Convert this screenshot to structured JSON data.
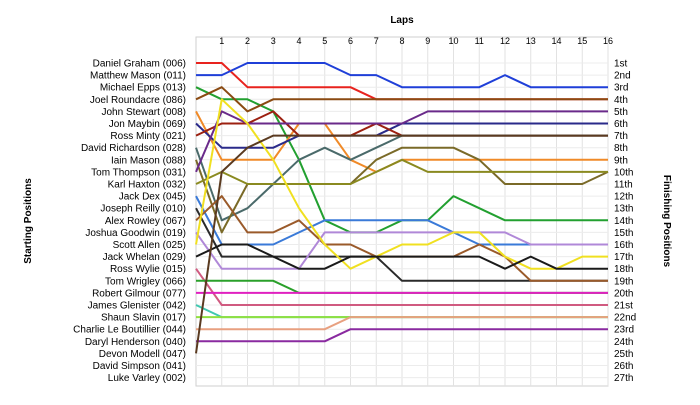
{
  "chart_data": {
    "type": "line",
    "title": "Laps",
    "xlabel": "Laps",
    "ylabel_left": "Starting Positions",
    "ylabel_right": "Finishing Positions",
    "laps": [
      1,
      2,
      3,
      4,
      5,
      6,
      7,
      8,
      9,
      10,
      11,
      12,
      13,
      14,
      15,
      16
    ],
    "x_range": [
      0,
      16
    ],
    "positions_range": [
      1,
      27
    ],
    "grid": true,
    "starting_grid": [
      "Daniel Graham (006)",
      "Matthew Mason (011)",
      "Michael Epps (013)",
      "Joel Roundacre (086)",
      "John Stewart (008)",
      "Jon Maybin (069)",
      "Ross Minty (021)",
      "David Richardson (028)",
      "Iain Mason (088)",
      "Tom Thompson (031)",
      "Karl Haxton (032)",
      "Jack Dex (045)",
      "Joseph Reilly (010)",
      "Alex Rowley (067)",
      "Joshua Goodwin (019)",
      "Scott Allen (025)",
      "Jack Whelan (029)",
      "Ross Wylie (015)",
      "Tom Wrigley (066)",
      "Robert Gilmour (077)",
      "James Glenister (042)",
      "Shaun Slavin (017)",
      "Charlie Le Boutillier (044)",
      "Daryl Henderson (040)",
      "Devon Modell (047)",
      "David Simpson (041)",
      "Luke Varley (002)"
    ],
    "finishing_labels": [
      "1st",
      "2nd",
      "3rd",
      "4th",
      "5th",
      "6th",
      "7th",
      "8th",
      "9th",
      "10th",
      "11th",
      "12th",
      "13th",
      "14th",
      "15th",
      "16th",
      "17th",
      "18th",
      "19th",
      "20th",
      "21st",
      "22nd",
      "23rd",
      "24th",
      "25th",
      "26th",
      "27th"
    ],
    "series": [
      {
        "color": "#e8231e",
        "positions": [
          1,
          1,
          3,
          3,
          3,
          3,
          3,
          4,
          4,
          4,
          4,
          4,
          4,
          4,
          4,
          4,
          4
        ]
      },
      {
        "color": "#1f3fd8",
        "positions": [
          2,
          2,
          1,
          1,
          1,
          1,
          2,
          2,
          3,
          3,
          3,
          3,
          2,
          3,
          3,
          3,
          3
        ]
      },
      {
        "color": "#22a030",
        "positions": [
          3,
          4,
          4,
          5,
          9,
          14,
          15,
          15,
          14,
          14,
          12,
          13,
          14,
          14,
          14,
          14,
          14
        ]
      },
      {
        "color": "#8a4a12",
        "positions": [
          4,
          3,
          5,
          4,
          4,
          4,
          4,
          4,
          4,
          4,
          4,
          4,
          4,
          4,
          4,
          4,
          4
        ]
      },
      {
        "color": "#f08a28",
        "positions": [
          5,
          9,
          9,
          9,
          6,
          6,
          9,
          10,
          9,
          9,
          9,
          9,
          9,
          9,
          9,
          9,
          9
        ]
      },
      {
        "color": "#2a2a8a",
        "positions": [
          6,
          8,
          8,
          8,
          7,
          7,
          7,
          7,
          6,
          6,
          6,
          6,
          6,
          6,
          6,
          6,
          6
        ]
      },
      {
        "color": "#9c2010",
        "positions": [
          7,
          6,
          6,
          5,
          7,
          7,
          7,
          6,
          7,
          7,
          7,
          7,
          7,
          7,
          7,
          7,
          7
        ]
      },
      {
        "color": "#4a6a6a",
        "positions": [
          8,
          14,
          13,
          11,
          9,
          8,
          9,
          8,
          7,
          7,
          7,
          7,
          7,
          7,
          7,
          7,
          7
        ]
      },
      {
        "color": "#7a6a28",
        "positions": [
          9,
          15,
          11,
          11,
          11,
          11,
          11,
          9,
          8,
          8,
          8,
          9,
          11,
          11,
          11,
          11,
          10
        ]
      },
      {
        "color": "#6a2a8a",
        "positions": [
          10,
          5,
          6,
          6,
          6,
          6,
          6,
          6,
          6,
          5,
          5,
          5,
          5,
          5,
          5,
          5,
          5
        ]
      },
      {
        "color": "#8a8a20",
        "positions": [
          11,
          10,
          11,
          11,
          11,
          11,
          11,
          10,
          9,
          10,
          10,
          10,
          10,
          10,
          10,
          10,
          10
        ]
      },
      {
        "color": "#2a2a2a",
        "positions": [
          13,
          17,
          17,
          17,
          17,
          17,
          17,
          17,
          19,
          19,
          19,
          19,
          19,
          19,
          19,
          19,
          19
        ]
      },
      {
        "color": "#3a7ad8",
        "positions": [
          12,
          16,
          16,
          16,
          15,
          14,
          14,
          14,
          14,
          14,
          15,
          16,
          16,
          16,
          16,
          16,
          16
        ]
      },
      {
        "color": "#9a5a2a",
        "positions": [
          14,
          12,
          15,
          15,
          14,
          16,
          16,
          17,
          17,
          17,
          17,
          16,
          17,
          19,
          19,
          19,
          19
        ]
      },
      {
        "color": "#b088d8",
        "positions": [
          15,
          18,
          18,
          18,
          18,
          15,
          15,
          15,
          15,
          15,
          15,
          15,
          15,
          16,
          16,
          16,
          16
        ]
      },
      {
        "color": "#f0e020",
        "positions": [
          16,
          4,
          6,
          9,
          13,
          16,
          18,
          17,
          16,
          16,
          15,
          15,
          17,
          18,
          18,
          17,
          17
        ]
      },
      {
        "color": "#1a1a1a",
        "positions": [
          17,
          16,
          16,
          17,
          18,
          18,
          17,
          17,
          17,
          17,
          17,
          17,
          18,
          17,
          18,
          18,
          18
        ]
      },
      {
        "color": "#d05a80",
        "positions": [
          18,
          21,
          21,
          21,
          21,
          21,
          21,
          21,
          21,
          21,
          21,
          21,
          21,
          21,
          21,
          21,
          21
        ]
      },
      {
        "color": "#2aa02a",
        "positions": [
          19,
          19,
          19,
          19,
          20,
          20,
          20,
          20,
          20,
          20,
          20,
          20,
          20,
          20,
          20,
          20,
          20
        ]
      },
      {
        "color": "#e020c0",
        "positions": [
          20,
          20,
          20,
          20,
          20,
          20,
          20,
          20,
          20,
          20,
          20,
          20,
          20,
          20,
          20,
          20,
          20
        ]
      },
      {
        "color": "#40c8b0",
        "positions": [
          21,
          22,
          22,
          22,
          22,
          22,
          22,
          22,
          22,
          22,
          22,
          22,
          22,
          22,
          22,
          22,
          22
        ]
      },
      {
        "color": "#90e040",
        "positions": [
          22,
          22,
          22,
          22,
          22,
          22,
          22,
          22,
          22,
          22,
          22,
          22,
          22,
          22,
          22,
          22,
          22
        ]
      },
      {
        "color": "#e8a080",
        "positions": [
          23,
          23,
          23,
          23,
          23,
          23,
          22,
          22,
          22,
          22,
          22,
          22,
          22,
          22,
          22,
          22,
          22
        ]
      },
      {
        "color": "#8a2aa0",
        "positions": [
          24,
          24,
          24,
          24,
          24,
          24,
          23,
          23,
          23,
          23,
          23,
          23,
          23,
          23,
          23,
          23,
          23
        ]
      },
      {
        "color": "#5a3a20",
        "positions": [
          25,
          10,
          8,
          7,
          7,
          7,
          7,
          7,
          7,
          7,
          7,
          7,
          7,
          7,
          7,
          7,
          7
        ]
      }
    ]
  }
}
